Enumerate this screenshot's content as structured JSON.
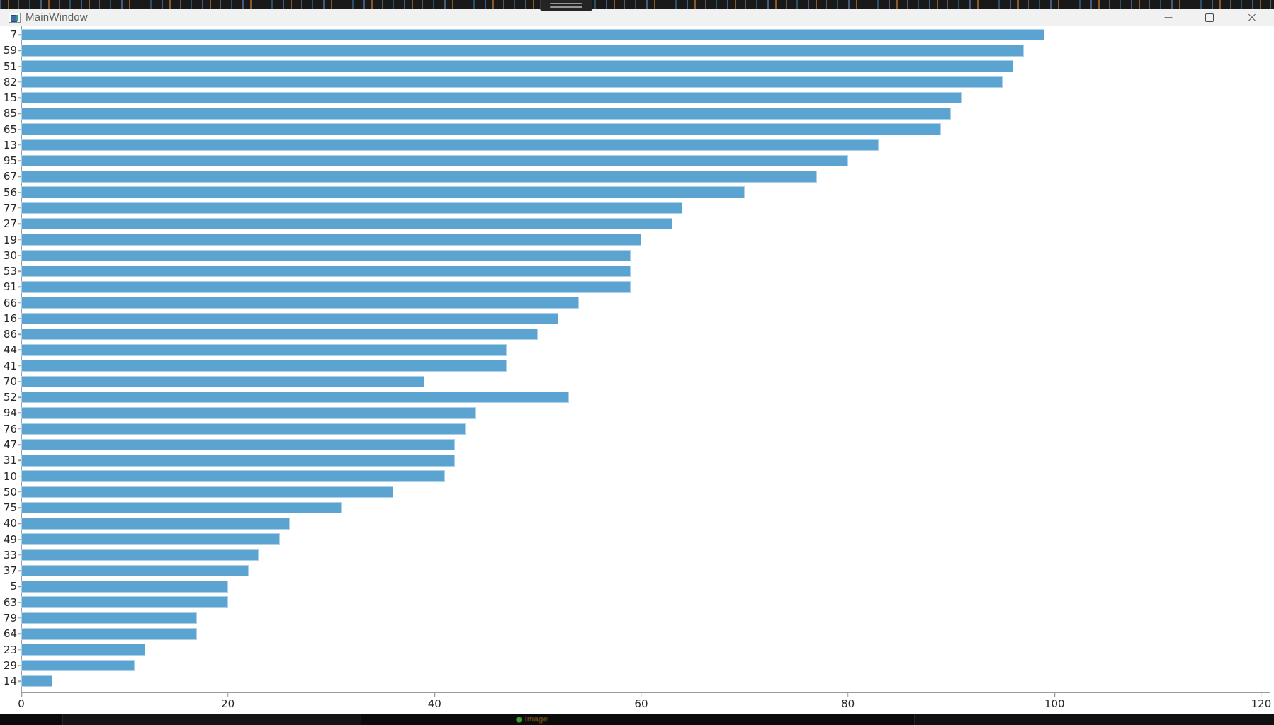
{
  "window": {
    "title": "MainWindow",
    "controls": {
      "minimize_label": "",
      "maximize_label": "",
      "close_label": "×"
    }
  },
  "chart_data": {
    "type": "bar",
    "orientation": "horizontal",
    "title": "",
    "xlabel": "",
    "ylabel": "",
    "categories": [
      "7",
      "59",
      "51",
      "82",
      "15",
      "85",
      "65",
      "13",
      "95",
      "67",
      "56",
      "77",
      "27",
      "19",
      "30",
      "53",
      "91",
      "66",
      "16",
      "86",
      "44",
      "41",
      "70",
      "52",
      "94",
      "76",
      "47",
      "31",
      "10",
      "50",
      "75",
      "40",
      "49",
      "33",
      "37",
      "5",
      "63",
      "79",
      "64",
      "23",
      "29",
      "14"
    ],
    "values": [
      99,
      97,
      96,
      95,
      91,
      90,
      89,
      83,
      80,
      77,
      70,
      64,
      63,
      60,
      59,
      59,
      59,
      54,
      52,
      50,
      47,
      47,
      39,
      53,
      44,
      43,
      42,
      42,
      41,
      36,
      31,
      26,
      25,
      23,
      22,
      20,
      20,
      17,
      17,
      12,
      11,
      3
    ],
    "x_ticks": [
      0,
      20,
      40,
      60,
      80,
      100,
      120
    ],
    "xlim": [
      0,
      120
    ],
    "grid": false,
    "legend": null,
    "bar_color": "#5ba3d0",
    "axis_color": "#9b9b9b",
    "tick_label_color": "#262626"
  },
  "taskbar": {
    "app_label": "image"
  }
}
